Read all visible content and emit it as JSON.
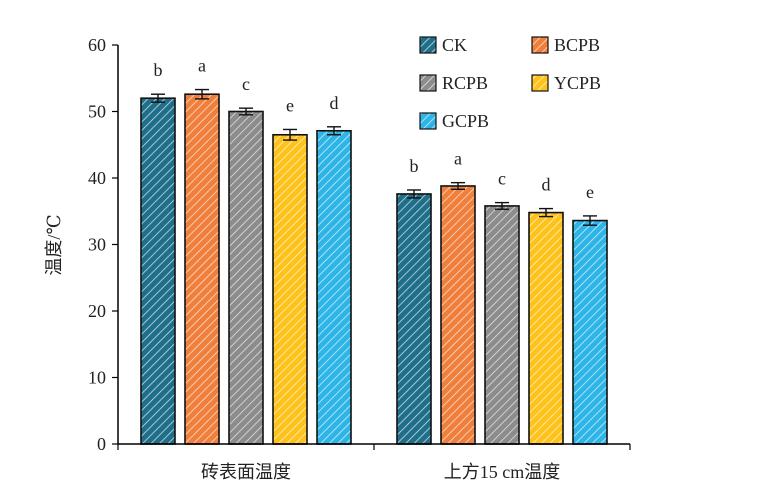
{
  "chart_data": {
    "type": "bar",
    "ylabel": "温度/℃",
    "ylim": [
      0,
      60
    ],
    "yticks": [
      0,
      10,
      20,
      30,
      40,
      50,
      60
    ],
    "categories": [
      "砖表面温度",
      "上方15 cm温度"
    ],
    "legend_position": "top-right",
    "grid": false,
    "series": [
      {
        "name": "CK",
        "values": [
          52.0,
          37.6
        ],
        "errors": [
          0.6,
          0.6
        ],
        "letters": [
          "b",
          "b"
        ],
        "color": "#1f6f8b"
      },
      {
        "name": "BCPB",
        "values": [
          52.6,
          38.8
        ],
        "errors": [
          0.7,
          0.5
        ],
        "letters": [
          "a",
          "a"
        ],
        "color": "#f07f3c"
      },
      {
        "name": "RCPB",
        "values": [
          50.0,
          35.8
        ],
        "errors": [
          0.5,
          0.5
        ],
        "letters": [
          "c",
          "c"
        ],
        "color": "#8c8c8c"
      },
      {
        "name": "YCPB",
        "values": [
          46.5,
          34.8
        ],
        "errors": [
          0.8,
          0.6
        ],
        "letters": [
          "e",
          "d"
        ],
        "color": "#ffc21a"
      },
      {
        "name": "GCPB",
        "values": [
          47.1,
          33.6
        ],
        "errors": [
          0.6,
          0.7
        ],
        "letters": [
          "d",
          "e"
        ],
        "color": "#2eb5e8"
      }
    ]
  }
}
